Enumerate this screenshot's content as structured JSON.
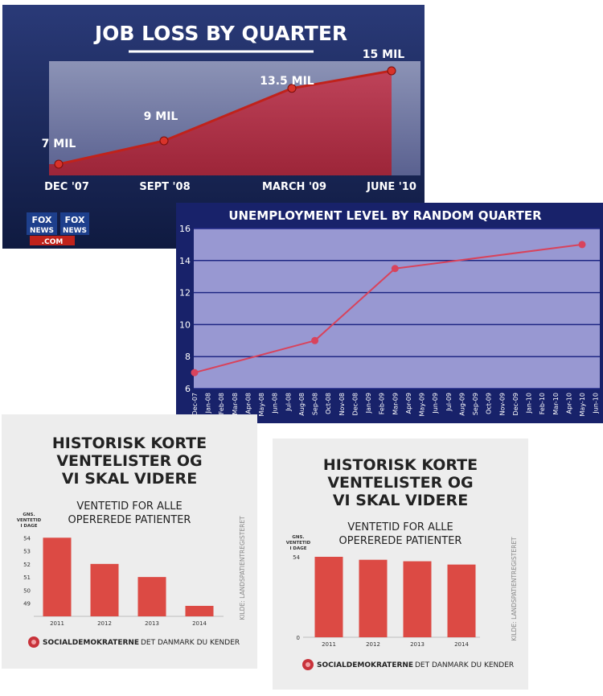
{
  "chart_data": [
    {
      "type": "line",
      "title": "JOB LOSS BY QUARTER",
      "categories": [
        "DEC '07",
        "SEPT '08",
        "MARCH '09",
        "JUNE '10"
      ],
      "values": [
        7,
        9,
        13.5,
        15
      ],
      "data_labels": [
        "7 MIL",
        "9 MIL",
        "13.5 MIL",
        "15 MIL"
      ],
      "logo": "FOX NEWS .COM",
      "colors": {
        "bg": "#1b2a5c",
        "line": "#c0221b",
        "fill": "#b5283a"
      }
    },
    {
      "type": "line",
      "title": "UNEMPLOYMENT LEVEL BY RANDOM QUARTER",
      "x_ticks": [
        "Dec-07",
        "Jan-08",
        "Feb-08",
        "Mar-08",
        "Apr-08",
        "May-08",
        "Jun-08",
        "Jul-08",
        "Aug-08",
        "Sep-08",
        "Oct-08",
        "Nov-08",
        "Dec-08",
        "Jan-09",
        "Feb-09",
        "Mar-09",
        "Apr-09",
        "May-09",
        "Jun-09",
        "Jul-09",
        "Aug-09",
        "Sep-09",
        "Oct-09",
        "Nov-09",
        "Dec-09",
        "Jan-10",
        "Feb-10",
        "Mar-10",
        "Apr-10",
        "May-10",
        "Jun-10"
      ],
      "points": [
        {
          "x": "Dec-07",
          "y": 7
        },
        {
          "x": "Sep-08",
          "y": 9
        },
        {
          "x": "Mar-09",
          "y": 13.5
        },
        {
          "x": "May-10",
          "y": 15
        }
      ],
      "y_ticks": [
        6,
        8,
        10,
        12,
        14,
        16
      ],
      "ylim": [
        6,
        16
      ],
      "grid": true,
      "colors": {
        "bg": "#9898d2",
        "line": "#d8435c",
        "grid": "#1f2784"
      }
    },
    {
      "type": "bar",
      "title": [
        "HISTORISK KORTE",
        "VENTELISTER OG",
        "VI SKAL VIDERE"
      ],
      "subtitle": [
        "VENTETID FOR ALLE",
        "OPEREREDE PATIENTER"
      ],
      "ylabel": [
        "GNS.",
        "VENTETID",
        "I DAGE"
      ],
      "categories": [
        "2011",
        "2012",
        "2013",
        "2014"
      ],
      "values": [
        54,
        52,
        51,
        48.8
      ],
      "y_ticks": [
        49,
        50,
        51,
        52,
        53,
        54
      ],
      "ylim": [
        48,
        55
      ],
      "source": "KILDE: LANDSPATIENTREGISTERET",
      "brand": "SOCIALDEMOKRATERNE",
      "tagline": "DET DANMARK DU KENDER",
      "colors": {
        "bar": "#dc4a44",
        "bg": "#ededed",
        "text": "#222222"
      }
    },
    {
      "type": "bar",
      "title": [
        "HISTORISK KORTE",
        "VENTELISTER OG",
        "VI SKAL VIDERE"
      ],
      "subtitle": [
        "VENTETID FOR ALLE",
        "OPEREREDE PATIENTER"
      ],
      "ylabel": [
        "GNS.",
        "VENTETID",
        "I DAGE"
      ],
      "categories": [
        "2011",
        "2012",
        "2013",
        "2014"
      ],
      "values": [
        54,
        52,
        51,
        48.8
      ],
      "y_ticks": [
        0,
        54
      ],
      "ylim": [
        0,
        54
      ],
      "source": "KILDE: LANDSPATIENTREGISTERET",
      "brand": "SOCIALDEMOKRATERNE",
      "tagline": "DET DANMARK DU KENDER",
      "colors": {
        "bar": "#dc4a44",
        "bg": "#ededed",
        "text": "#222222"
      }
    }
  ]
}
